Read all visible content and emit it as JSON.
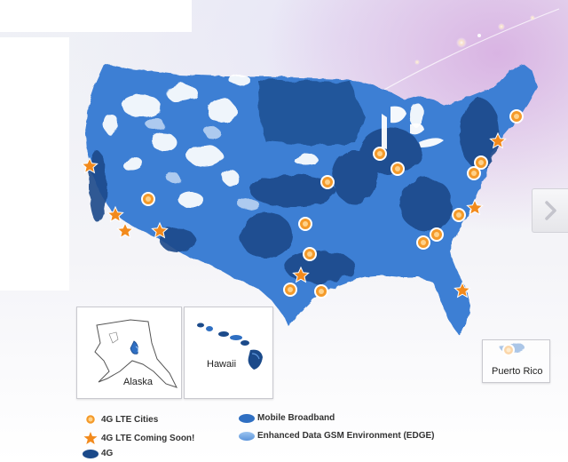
{
  "insets": {
    "alaska_label": "Alaska",
    "hawaii_label": "Hawaii",
    "puerto_rico_label": "Puerto Rico"
  },
  "legend": {
    "lte_cities": "4G LTE Cities",
    "lte_coming_soon": "4G LTE Coming Soon!",
    "four_g": "4G",
    "mobile_broadband": "Mobile Broadband",
    "edge": "Enhanced Data GSM Environment (EDGE)"
  },
  "colors": {
    "four_g": "#1b4a8a",
    "mobile_broadband": "#2f6fc2",
    "edge": "#7fb2ea",
    "lte_city": "#f49a2a",
    "lte_soon": "#f28a1c"
  },
  "icons": {
    "lte_city_marker": "orange-circle-marker",
    "lte_soon_marker": "orange-star-marker",
    "next_arrow": "chevron-right-icon"
  }
}
